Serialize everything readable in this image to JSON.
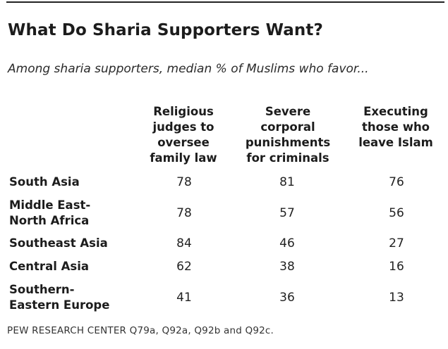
{
  "chart_data": {
    "type": "table",
    "title": "What Do Sharia Supporters Want?",
    "subtitle": "Among sharia supporters, median % of Muslims who favor...",
    "columns": [
      "Religious\njudges to\noversee\nfamily law",
      "Severe\ncorporal\npunishments\nfor criminals",
      "Executing\nthose who\nleave Islam"
    ],
    "rows": [
      {
        "label": "South Asia",
        "values": [
          "78",
          "81",
          "76"
        ]
      },
      {
        "label": "Middle East-\nNorth Africa",
        "values": [
          "78",
          "57",
          "56"
        ]
      },
      {
        "label": "Southeast Asia",
        "values": [
          "84",
          "46",
          "27"
        ]
      },
      {
        "label": "Central Asia",
        "values": [
          "62",
          "38",
          "16"
        ]
      },
      {
        "label": "Southern-\nEastern Europe",
        "values": [
          "41",
          "36",
          "13"
        ]
      }
    ],
    "source": "PEW RESEARCH CENTER Q79a, Q92a, Q92b and Q92c."
  }
}
